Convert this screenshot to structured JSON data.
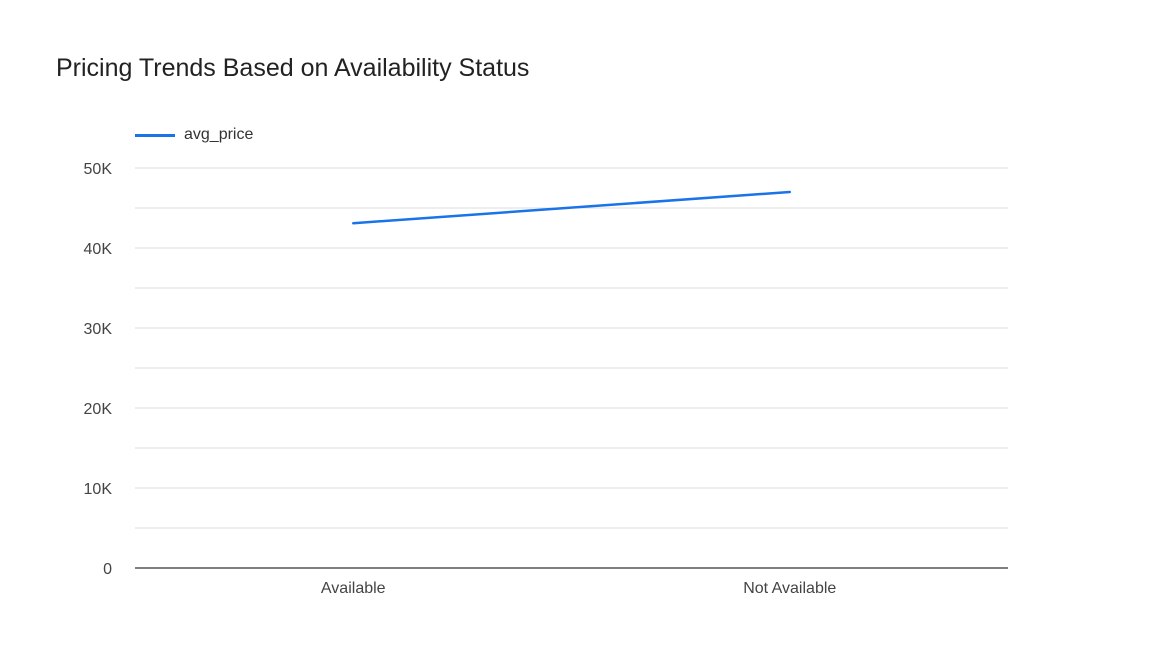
{
  "chart_data": {
    "type": "line",
    "title": "Pricing Trends Based on Availability Status",
    "categories": [
      "Available",
      "Not Available"
    ],
    "series": [
      {
        "name": "avg_price",
        "values": [
          43100,
          47000
        ],
        "color": "#1a73e8"
      }
    ],
    "xlabel": "",
    "ylabel": "",
    "ylim": [
      0,
      50000
    ],
    "y_ticks": [
      {
        "value": 0,
        "label": "0"
      },
      {
        "value": 10000,
        "label": "10K"
      },
      {
        "value": 20000,
        "label": "20K"
      },
      {
        "value": 30000,
        "label": "30K"
      },
      {
        "value": 40000,
        "label": "40K"
      },
      {
        "value": 50000,
        "label": "50K"
      }
    ],
    "minor_gridlines": [
      5000,
      15000,
      25000,
      35000,
      45000
    ],
    "grid": true,
    "legend_position": "top-left",
    "colors": {
      "grid": "#dddddd",
      "axis": "#333333"
    }
  }
}
